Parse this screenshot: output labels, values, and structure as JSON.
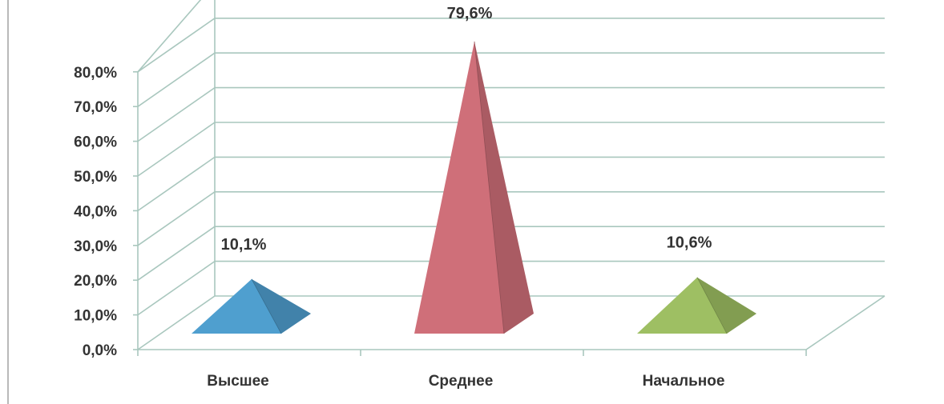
{
  "chart_data": {
    "type": "bar",
    "style": "3d-pyramid",
    "categories": [
      "Высшее",
      "Среднее",
      "Начальное"
    ],
    "values": [
      10.1,
      79.6,
      10.6
    ],
    "value_labels": [
      "10,1%",
      "79,6%",
      "10,6%"
    ],
    "ylim": [
      0,
      80
    ],
    "yticks": [
      0,
      10,
      20,
      30,
      40,
      50,
      60,
      70,
      80
    ],
    "ytick_labels": [
      "0,0%",
      "10,0%",
      "20,0%",
      "30,0%",
      "40,0%",
      "50,0%",
      "60,0%",
      "70,0%",
      "80,0%"
    ],
    "grid": true,
    "colors": [
      "#4f9fcf",
      "#cf6f79",
      "#9ebf63"
    ]
  }
}
